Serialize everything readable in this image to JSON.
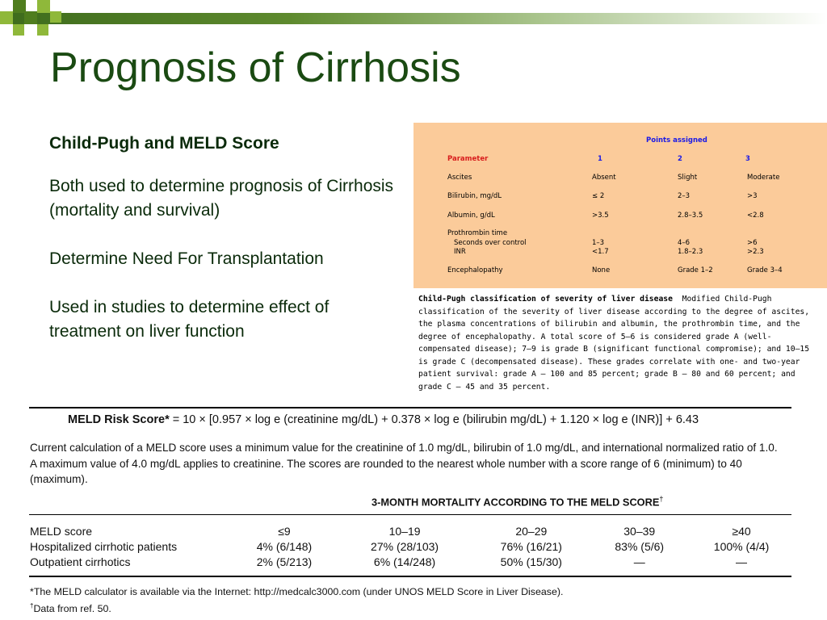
{
  "slide": {
    "title": "Prognosis of Cirrhosis",
    "subtitle": "Child-Pugh and MELD Score",
    "bullets": [
      "Both used to determine prognosis of Cirrhosis (mortality and survival)",
      "Determine Need For Transplantation",
      "Used in studies to determine effect of treatment on liver function"
    ]
  },
  "child_pugh": {
    "points_header": "Points assigned",
    "param_header": "Parameter",
    "points": [
      "1",
      "2",
      "3"
    ],
    "rows": [
      {
        "param": "Ascites",
        "v": [
          "Absent",
          "Slight",
          "Moderate"
        ]
      },
      {
        "param": "Bilirubin, mg/dL",
        "v": [
          "≤ 2",
          "2–3",
          ">3"
        ]
      },
      {
        "param": "Albumin, g/dL",
        "v": [
          ">3.5",
          "2.8–3.5",
          "<2.8"
        ]
      },
      {
        "param": "Prothrombin time",
        "v": [
          "",
          "",
          ""
        ]
      },
      {
        "param": "Seconds over control",
        "v": [
          "1–3",
          "4–6",
          ">6"
        ]
      },
      {
        "param": "INR",
        "v": [
          "<1.7",
          "1.8–2.3",
          ">2.3"
        ]
      },
      {
        "param": "Encephalopathy",
        "v": [
          "None",
          "Grade 1–2",
          "Grade 3–4"
        ]
      }
    ],
    "caption_bold": "Child-Pugh classification of severity of liver disease",
    "caption_text": "Modified Child-Pugh classification of the severity of liver disease according to the degree of ascites, the plasma concentrations of bilirubin and albumin, the prothrombin time, and the degree of encephalopathy. A total score of 5–6 is considered grade A (well-compensated disease); 7–9 is grade B (significant functional compromise); and 10–15 is grade C (decompensated disease). These grades correlate with one- and two-year patient survival: grade A — 100 and 85 percent; grade B — 80 and 60 percent; and grade C — 45 and 35 percent."
  },
  "meld": {
    "formula_label": "MELD Risk Score*",
    "formula": "= 10 × [0.957 × log e (creatinine mg/dL) + 0.378 × log e (bilirubin mg/dL) + 1.120 × log e (INR)] + 6.43",
    "description": "Current calculation of a MELD score uses a minimum value for the creatinine of 1.0 mg/dL, bilirubin of 1.0 mg/dL, and international normalized ratio of 1.0. A maximum value of 4.0 mg/dL applies to creatinine. The scores are rounded to the nearest whole number with a score range of 6 (minimum) to 40 (maximum).",
    "mortality_header": "3-MONTH MORTALITY ACCORDING TO THE MELD SCORE",
    "mortality_mark": "†",
    "table": [
      [
        "MELD score",
        "≤9",
        "10–19",
        "20–29",
        "30–39",
        "≥40"
      ],
      [
        "Hospitalized cirrhotic patients",
        "4% (6/148)",
        "27% (28/103)",
        "76% (16/21)",
        "83% (5/6)",
        "100% (4/4)"
      ],
      [
        "Outpatient cirrhotics",
        "2% (5/213)",
        "6% (14/248)",
        "50% (15/30)",
        "—",
        "—"
      ]
    ],
    "footnote1": "*The MELD calculator is available via the Internet: http://medcalc3000.com (under UNOS MELD Score in Liver Disease).",
    "footnote2_mark": "†",
    "footnote2": "Data from ref. 50."
  }
}
